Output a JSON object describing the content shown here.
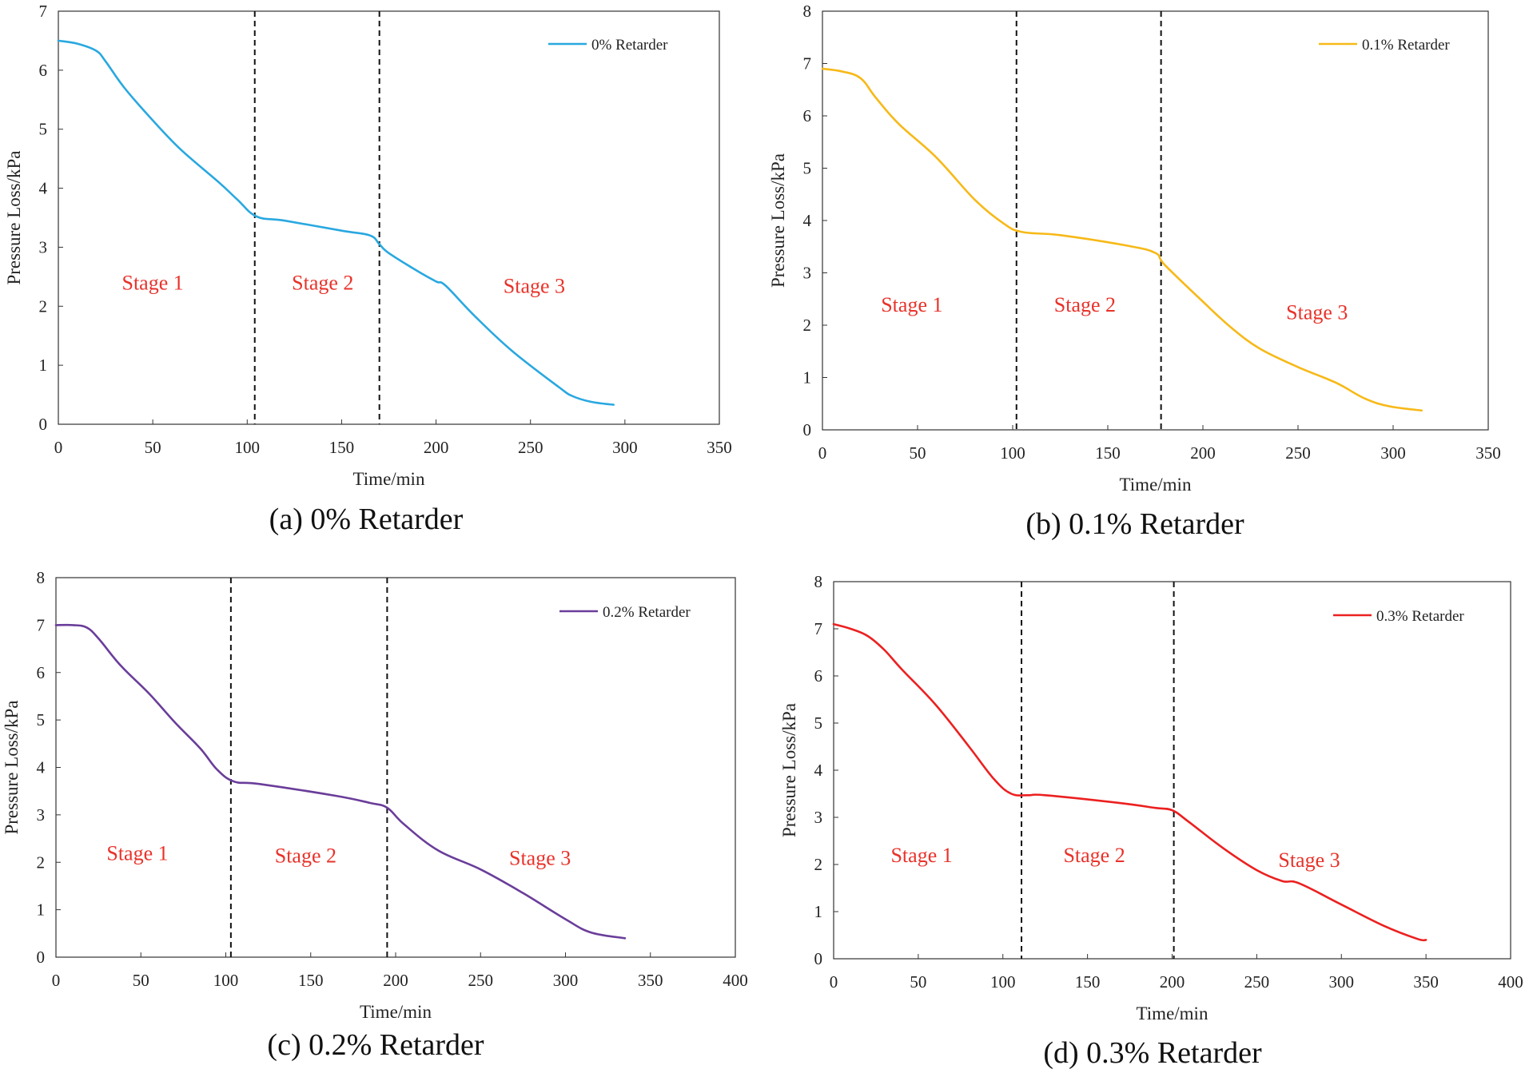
{
  "chart_data": [
    {
      "type": "line",
      "caption": "(a) 0% Retarder",
      "xlabel": "Time/min",
      "ylabel": "Pressure Loss/kPa",
      "xlim": [
        0,
        350
      ],
      "ylim": [
        0,
        7
      ],
      "xticks": [
        0,
        50,
        100,
        150,
        200,
        250,
        300,
        350
      ],
      "yticks": [
        0,
        1,
        2,
        3,
        4,
        5,
        6,
        7
      ],
      "legend_position": "top-right",
      "stage_dividers": [
        104,
        170
      ],
      "stages": [
        {
          "label": "Stage 1",
          "x": 50,
          "y": 2.4
        },
        {
          "label": "Stage 2",
          "x": 140,
          "y": 2.4
        },
        {
          "label": "Stage 3",
          "x": 252,
          "y": 2.35
        }
      ],
      "series": [
        {
          "name": "0% Retarder",
          "color": "#29a8e0",
          "x": [
            0,
            10,
            20,
            25,
            35,
            50,
            65,
            85,
            95,
            105,
            120,
            150,
            165,
            170,
            175,
            190,
            200,
            205,
            220,
            240,
            265,
            272,
            282,
            294
          ],
          "y": [
            6.5,
            6.45,
            6.33,
            6.15,
            5.7,
            5.15,
            4.65,
            4.1,
            3.8,
            3.52,
            3.45,
            3.28,
            3.2,
            3.05,
            2.9,
            2.6,
            2.42,
            2.35,
            1.85,
            1.25,
            0.63,
            0.48,
            0.38,
            0.33
          ]
        }
      ]
    },
    {
      "type": "line",
      "caption": "(b) 0.1% Retarder",
      "xlabel": "Time/min",
      "ylabel": "Pressure Loss/kPa",
      "xlim": [
        0,
        350
      ],
      "ylim": [
        0,
        8
      ],
      "xticks": [
        0,
        50,
        100,
        150,
        200,
        250,
        300,
        350
      ],
      "yticks": [
        0,
        1,
        2,
        3,
        4,
        5,
        6,
        7,
        8
      ],
      "legend_position": "top-right",
      "stage_dividers": [
        102,
        178
      ],
      "stages": [
        {
          "label": "Stage 1",
          "x": 47,
          "y": 2.4
        },
        {
          "label": "Stage 2",
          "x": 138,
          "y": 2.4
        },
        {
          "label": "Stage 3",
          "x": 260,
          "y": 2.25
        }
      ],
      "series": [
        {
          "name": "0.1% Retarder",
          "color": "#f7b918",
          "x": [
            0,
            10,
            20,
            28,
            40,
            60,
            80,
            95,
            105,
            125,
            160,
            175,
            180,
            200,
            215,
            230,
            250,
            270,
            285,
            298,
            315
          ],
          "y": [
            6.9,
            6.85,
            6.72,
            6.35,
            5.85,
            5.2,
            4.4,
            3.95,
            3.78,
            3.72,
            3.52,
            3.38,
            3.15,
            2.45,
            1.95,
            1.55,
            1.2,
            0.9,
            0.6,
            0.45,
            0.37
          ]
        }
      ]
    },
    {
      "type": "line",
      "caption": "(c) 0.2% Retarder",
      "xlabel": "Time/min",
      "ylabel": "Pressure Loss/kPa",
      "xlim": [
        0,
        400
      ],
      "ylim": [
        0,
        8
      ],
      "xticks": [
        0,
        50,
        100,
        150,
        200,
        250,
        300,
        350,
        400
      ],
      "yticks": [
        0,
        1,
        2,
        3,
        4,
        5,
        6,
        7,
        8
      ],
      "legend_position": "top-right",
      "stage_dividers": [
        103,
        195
      ],
      "stages": [
        {
          "label": "Stage 1",
          "x": 48,
          "y": 2.2
        },
        {
          "label": "Stage 2",
          "x": 147,
          "y": 2.15
        },
        {
          "label": "Stage 3",
          "x": 285,
          "y": 2.1
        }
      ],
      "series": [
        {
          "name": "0.2% Retarder",
          "color": "#6a3d9a",
          "x": [
            0,
            10,
            18,
            25,
            38,
            55,
            70,
            85,
            95,
            105,
            120,
            165,
            185,
            195,
            205,
            225,
            250,
            275,
            300,
            315,
            335
          ],
          "y": [
            7.0,
            7.0,
            6.95,
            6.72,
            6.15,
            5.55,
            4.95,
            4.4,
            3.95,
            3.7,
            3.65,
            3.4,
            3.25,
            3.15,
            2.8,
            2.25,
            1.85,
            1.35,
            0.8,
            0.52,
            0.4
          ]
        }
      ]
    },
    {
      "type": "line",
      "caption": "(d) 0.3% Retarder",
      "xlabel": "Time/min",
      "ylabel": "Pressure Loss/kPa",
      "xlim": [
        0,
        400
      ],
      "ylim": [
        0,
        8
      ],
      "xticks": [
        0,
        50,
        100,
        150,
        200,
        250,
        300,
        350,
        400
      ],
      "yticks": [
        0,
        1,
        2,
        3,
        4,
        5,
        6,
        7,
        8
      ],
      "legend_position": "top-right",
      "stage_dividers": [
        111,
        201
      ],
      "stages": [
        {
          "label": "Stage 1",
          "x": 52,
          "y": 2.2
        },
        {
          "label": "Stage 2",
          "x": 154,
          "y": 2.2
        },
        {
          "label": "Stage 3",
          "x": 281,
          "y": 2.1
        }
      ],
      "series": [
        {
          "name": "0.3% Retarder",
          "color": "#ec2020",
          "x": [
            0,
            10,
            20,
            30,
            40,
            60,
            80,
            95,
            105,
            115,
            125,
            170,
            190,
            200,
            210,
            230,
            250,
            265,
            275,
            300,
            325,
            345,
            350
          ],
          "y": [
            7.1,
            7.0,
            6.85,
            6.55,
            6.15,
            5.4,
            4.5,
            3.8,
            3.5,
            3.47,
            3.47,
            3.3,
            3.2,
            3.15,
            2.9,
            2.35,
            1.88,
            1.65,
            1.6,
            1.15,
            0.7,
            0.42,
            0.4
          ]
        }
      ]
    }
  ]
}
